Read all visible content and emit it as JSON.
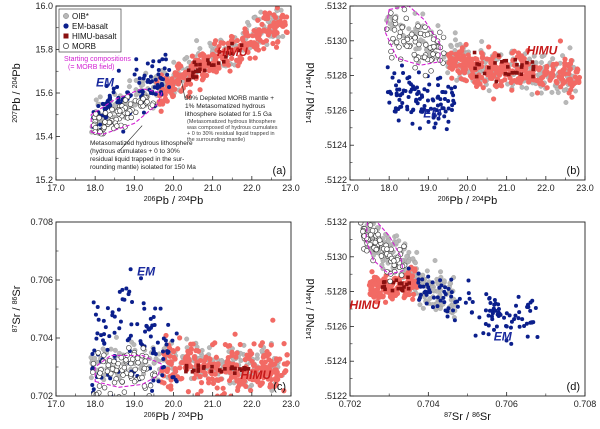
{
  "colors": {
    "oib": "#b8b8b8",
    "em": "#0b1f8c",
    "himu_light": "#f26a64",
    "himu_dark": "#8a1010",
    "morb_fill": "#ffffff",
    "morb_edge": "#333333",
    "magenta": "#d21fd2"
  },
  "legend": {
    "items": [
      "OIB*",
      "EM-basalt",
      "HIMU-basalt",
      "MORB"
    ]
  },
  "annotations": {
    "starting": [
      "Starting compositions",
      "(= MORB field)"
    ],
    "depleted": [
      "99% Depleted MORB mantle +",
      "1% Metasomatized hydrous",
      "lithosphere isolated for 1.5 Ga"
    ],
    "depleted_small": [
      "(Metasomatized hydrous lithosphere",
      "was composed of hydrous cumulates",
      "+ 0 to 30% residual liquid trapped in",
      "the surrounding mantle)"
    ],
    "metasomatized": [
      "Metasomatized hydrous lithosphere",
      "(hydrous cumulates + 0 to 30%",
      "residual liquid trapped in the sur-",
      "rounding mantle) isolated for 150 Ma"
    ]
  },
  "chart_data": [
    {
      "panel": "(a)",
      "type": "scatter",
      "xlabel": "206Pb / 204Pb",
      "ylabel": "207Pb / 204Pb",
      "xlim": [
        17.0,
        23.0
      ],
      "ylim": [
        15.2,
        16.0
      ],
      "xticks": [
        "17.0",
        "18.0",
        "19.0",
        "20.0",
        "21.0",
        "22.0",
        "23.0"
      ],
      "yticks": [
        "15.2",
        "15.4",
        "15.6",
        "15.8",
        "16.0"
      ],
      "labels": [
        {
          "text": "EM",
          "x": 18.25,
          "y": 15.63
        },
        {
          "text": "HIMU",
          "x": 21.5,
          "y": 15.77
        }
      ],
      "series": [
        {
          "cls": "oib",
          "name": "OIB*",
          "trend": [
            [
              18.0,
              15.48
            ],
            [
              19.0,
              15.57
            ],
            [
              20.0,
              15.66
            ],
            [
              21.0,
              15.76
            ],
            [
              22.0,
              15.86
            ],
            [
              22.8,
              15.95
            ]
          ],
          "xspan": [
            17.9,
            22.8
          ],
          "spread": 0.045,
          "n": 230
        },
        {
          "cls": "himu_light",
          "name": "HIMU-basalt",
          "trend": [
            [
              19.6,
              15.6
            ],
            [
              20.5,
              15.7
            ],
            [
              21.5,
              15.8
            ],
            [
              22.3,
              15.88
            ],
            [
              22.9,
              15.93
            ]
          ],
          "xspan": [
            19.6,
            22.9
          ],
          "spread": 0.04,
          "n": 260
        },
        {
          "cls": "em",
          "name": "EM-basalt",
          "trend": [
            [
              17.9,
              15.5
            ],
            [
              18.6,
              15.56
            ],
            [
              19.3,
              15.62
            ],
            [
              19.9,
              15.66
            ]
          ],
          "xspan": [
            17.9,
            19.9
          ],
          "spread": 0.05,
          "n": 110
        },
        {
          "cls": "himu_dark",
          "name": "HIMU-basalt",
          "trend": [
            [
              20.4,
              15.69
            ],
            [
              21.0,
              15.75
            ],
            [
              21.8,
              15.83
            ]
          ],
          "xspan": [
            20.4,
            21.8
          ],
          "spread": 0.02,
          "n": 30
        },
        {
          "cls": "morb",
          "name": "MORB",
          "trend": [
            [
              17.9,
              15.44
            ],
            [
              18.5,
              15.49
            ],
            [
              19.1,
              15.55
            ],
            [
              19.5,
              15.58
            ]
          ],
          "xspan": [
            17.9,
            19.5
          ],
          "spread": 0.03,
          "n": 70
        }
      ],
      "field": [
        [
          17.9,
          15.42
        ],
        [
          18.2,
          15.41
        ],
        [
          19.0,
          15.46
        ],
        [
          19.6,
          15.55
        ],
        [
          19.7,
          15.6
        ],
        [
          19.2,
          15.62
        ],
        [
          18.5,
          15.57
        ],
        [
          17.9,
          15.5
        ]
      ],
      "callouts": [
        {
          "from": [
            19.2,
            15.45
          ],
          "to": [
            18.6,
            15.33
          ]
        },
        {
          "from": [
            20.2,
            15.66
          ],
          "to": [
            20.3,
            15.57
          ]
        }
      ]
    },
    {
      "panel": "(b)",
      "type": "scatter",
      "xlabel": "206Pb / 204Pb",
      "ylabel": "143Nd / 144Nd",
      "xlim": [
        17.0,
        23.0
      ],
      "ylim": [
        0.5122,
        0.5132
      ],
      "xticks": [
        "17.0",
        "18.0",
        "19.0",
        "20.0",
        "21.0",
        "22.0",
        "23.0"
      ],
      "yticks": [
        ".5122",
        ".5124",
        ".5126",
        ".5128",
        ".5130",
        ".5132"
      ],
      "labels": [
        {
          "text": "EM",
          "x": 19.1,
          "y": 0.51256
        },
        {
          "text": "HIMU",
          "x": 21.9,
          "y": 0.51292
        }
      ],
      "series": [
        {
          "cls": "oib",
          "name": "OIB*",
          "trend": [
            [
              18.0,
              0.51312
            ],
            [
              18.8,
              0.513
            ],
            [
              19.6,
              0.5129
            ],
            [
              20.5,
              0.51284
            ],
            [
              21.5,
              0.51282
            ],
            [
              22.8,
              0.5128
            ]
          ],
          "xspan": [
            17.9,
            22.8
          ],
          "spread": 6e-05,
          "n": 240
        },
        {
          "cls": "himu_light",
          "name": "HIMU-basalt",
          "trend": [
            [
              19.5,
              0.51288
            ],
            [
              20.5,
              0.51284
            ],
            [
              21.5,
              0.51282
            ],
            [
              22.9,
              0.5128
            ]
          ],
          "xspan": [
            19.5,
            22.9
          ],
          "spread": 5e-05,
          "n": 280
        },
        {
          "cls": "em",
          "name": "EM-basalt",
          "trend": [
            [
              18.2,
              0.5127
            ],
            [
              18.7,
              0.51265
            ],
            [
              19.2,
              0.51262
            ],
            [
              19.5,
              0.5127
            ]
          ],
          "xspan": [
            17.9,
            19.7
          ],
          "spread": 8e-05,
          "n": 110
        },
        {
          "cls": "himu_dark",
          "name": "HIMU-basalt",
          "trend": [
            [
              20.2,
              0.51286
            ],
            [
              21.0,
              0.51285
            ],
            [
              21.8,
              0.51283
            ]
          ],
          "xspan": [
            20.2,
            21.8
          ],
          "spread": 3e-05,
          "n": 30
        },
        {
          "cls": "morb",
          "name": "MORB",
          "trend": [
            [
              18.0,
              0.51305
            ],
            [
              18.5,
              0.513
            ],
            [
              19.0,
              0.51296
            ],
            [
              19.4,
              0.51294
            ]
          ],
          "xspan": [
            17.9,
            19.4
          ],
          "spread": 7e-05,
          "n": 70
        }
      ],
      "field": [
        [
          18.0,
          0.51318
        ],
        [
          18.5,
          0.5132
        ],
        [
          18.9,
          0.51312
        ],
        [
          19.3,
          0.51298
        ],
        [
          19.3,
          0.51288
        ],
        [
          18.8,
          0.51286
        ],
        [
          18.2,
          0.5129
        ],
        [
          17.9,
          0.51305
        ]
      ],
      "callouts": []
    },
    {
      "panel": "(c)",
      "type": "scatter",
      "xlabel": "206Pb / 204Pb",
      "ylabel": "87Sr / 86Sr",
      "xlim": [
        17.0,
        23.0
      ],
      "ylim": [
        0.702,
        0.708
      ],
      "xticks": [
        "17.0",
        "18.0",
        "19.0",
        "20.0",
        "21.0",
        "22.0",
        "23.0"
      ],
      "yticks": [
        "0.702",
        "0.704",
        "0.706",
        "0.708"
      ],
      "labels": [
        {
          "text": "EM",
          "x": 19.3,
          "y": 0.70615
        },
        {
          "text": "HIMU",
          "x": 22.1,
          "y": 0.70258
        }
      ],
      "series": [
        {
          "cls": "oib",
          "name": "OIB*",
          "trend": [
            [
              18.0,
              0.7031
            ],
            [
              19.0,
              0.7033
            ],
            [
              20.0,
              0.7032
            ],
            [
              21.0,
              0.7031
            ],
            [
              22.0,
              0.703
            ],
            [
              22.8,
              0.703
            ]
          ],
          "xspan": [
            17.9,
            22.8
          ],
          "spread": 0.00035,
          "n": 230
        },
        {
          "cls": "himu_light",
          "name": "HIMU-basalt",
          "trend": [
            [
              19.7,
              0.7031
            ],
            [
              20.8,
              0.703
            ],
            [
              21.8,
              0.7029
            ],
            [
              22.9,
              0.7029
            ]
          ],
          "xspan": [
            19.7,
            22.9
          ],
          "spread": 0.0004,
          "n": 280
        },
        {
          "cls": "em",
          "name": "EM-basalt",
          "trend": [
            [
              18.2,
              0.7037
            ],
            [
              18.7,
              0.7045
            ],
            [
              19.1,
              0.704
            ],
            [
              19.6,
              0.7035
            ],
            [
              20.1,
              0.7033
            ]
          ],
          "xspan": [
            17.9,
            20.1
          ],
          "spread": 0.0011,
          "n": 120
        },
        {
          "cls": "himu_dark",
          "name": "HIMU-basalt",
          "trend": [
            [
              20.2,
              0.70295
            ],
            [
              21.0,
              0.7029
            ],
            [
              21.9,
              0.70292
            ]
          ],
          "xspan": [
            20.2,
            21.9
          ],
          "spread": 8e-05,
          "n": 30
        },
        {
          "cls": "morb",
          "name": "MORB",
          "trend": [
            [
              18.0,
              0.7026
            ],
            [
              18.5,
              0.7028
            ],
            [
              19.0,
              0.7029
            ],
            [
              19.5,
              0.7028
            ]
          ],
          "xspan": [
            17.9,
            19.5
          ],
          "spread": 0.0004,
          "n": 70
        }
      ],
      "field": [
        [
          18.0,
          0.7025
        ],
        [
          18.6,
          0.7023
        ],
        [
          19.2,
          0.7024
        ],
        [
          19.6,
          0.7027
        ],
        [
          19.7,
          0.7031
        ],
        [
          19.2,
          0.7034
        ],
        [
          18.4,
          0.7034
        ],
        [
          18.0,
          0.703
        ]
      ],
      "callouts": []
    },
    {
      "panel": "(d)",
      "type": "scatter",
      "xlabel": "87Sr / 86Sr",
      "ylabel": "143Nd / 144Nd",
      "xlim": [
        0.702,
        0.708
      ],
      "ylim": [
        0.5122,
        0.5132
      ],
      "xticks": [
        "0.702",
        "0.704",
        "0.706",
        "0.708"
      ],
      "yticks": [
        ".5122",
        ".5124",
        ".5126",
        ".5128",
        ".5130",
        ".5132"
      ],
      "labels": [
        {
          "text": "EM",
          "x": 0.7059,
          "y": 0.51252
        },
        {
          "text": "HIMU",
          "x": 0.70238,
          "y": 0.5127
        }
      ],
      "series": [
        {
          "cls": "oib",
          "name": "OIB*",
          "trend": [
            [
              0.7025,
              0.51312
            ],
            [
              0.703,
              0.51303
            ],
            [
              0.7035,
              0.51292
            ],
            [
              0.704,
              0.51283
            ],
            [
              0.7045,
              0.51276
            ]
          ],
          "xspan": [
            0.7024,
            0.7047
          ],
          "spread": 6e-05,
          "n": 230
        },
        {
          "cls": "himu_light",
          "name": "HIMU-basalt",
          "trend": [
            [
              0.7026,
              0.51282
            ],
            [
              0.703,
              0.51282
            ],
            [
              0.7034,
              0.51283
            ],
            [
              0.7037,
              0.51285
            ]
          ],
          "xspan": [
            0.7025,
            0.7037
          ],
          "spread": 4e-05,
          "n": 150
        },
        {
          "cls": "em",
          "name": "EM-basalt",
          "trend": [
            [
              0.7036,
              0.51284
            ],
            [
              0.7043,
              0.51278
            ],
            [
              0.7051,
              0.5127
            ],
            [
              0.7058,
              0.51264
            ],
            [
              0.7066,
              0.51264
            ]
          ],
          "xspan": [
            0.7035,
            0.7068
          ],
          "spread": 6e-05,
          "n": 120
        },
        {
          "cls": "himu_dark",
          "name": "HIMU-basalt",
          "trend": [
            [
              0.7029,
              0.51284
            ],
            [
              0.7032,
              0.51284
            ],
            [
              0.7035,
              0.51283
            ]
          ],
          "xspan": [
            0.7028,
            0.7036
          ],
          "spread": 3e-05,
          "n": 20
        },
        {
          "cls": "morb",
          "name": "MORB",
          "trend": [
            [
              0.7024,
              0.51312
            ],
            [
              0.7027,
              0.51306
            ],
            [
              0.703,
              0.513
            ],
            [
              0.7033,
              0.51296
            ]
          ],
          "xspan": [
            0.7023,
            0.7034
          ],
          "spread": 4e-05,
          "n": 70
        }
      ],
      "field": [
        [
          0.70245,
          0.5132
        ],
        [
          0.70265,
          0.51321
        ],
        [
          0.703,
          0.51312
        ],
        [
          0.7033,
          0.513
        ],
        [
          0.70335,
          0.51292
        ],
        [
          0.703,
          0.5129
        ],
        [
          0.7026,
          0.51298
        ],
        [
          0.7024,
          0.5131
        ]
      ],
      "callouts": []
    }
  ]
}
